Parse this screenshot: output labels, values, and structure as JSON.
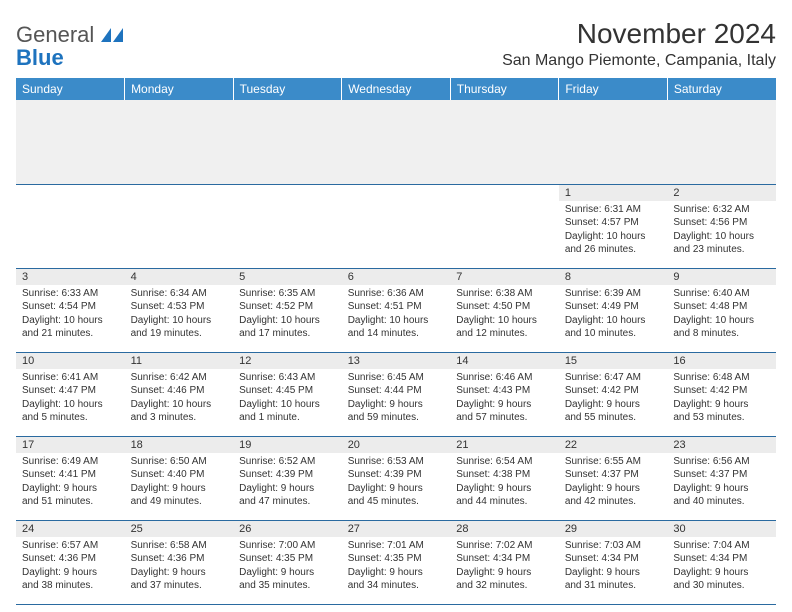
{
  "logo": {
    "word1": "General",
    "word2": "Blue"
  },
  "title": "November 2024",
  "location": "San Mango Piemonte, Campania, Italy",
  "colors": {
    "header_bg": "#3b8bc9",
    "header_text": "#ffffff",
    "rule": "#2a6aa0",
    "daybar": "#ececec",
    "logo_blue": "#1e73be",
    "text": "#333333"
  },
  "weekdays": [
    "Sunday",
    "Monday",
    "Tuesday",
    "Wednesday",
    "Thursday",
    "Friday",
    "Saturday"
  ],
  "weeks": [
    [
      {
        "n": "",
        "sr": "",
        "ss": "",
        "dl1": "",
        "dl2": ""
      },
      {
        "n": "",
        "sr": "",
        "ss": "",
        "dl1": "",
        "dl2": ""
      },
      {
        "n": "",
        "sr": "",
        "ss": "",
        "dl1": "",
        "dl2": ""
      },
      {
        "n": "",
        "sr": "",
        "ss": "",
        "dl1": "",
        "dl2": ""
      },
      {
        "n": "",
        "sr": "",
        "ss": "",
        "dl1": "",
        "dl2": ""
      },
      {
        "n": "1",
        "sr": "Sunrise: 6:31 AM",
        "ss": "Sunset: 4:57 PM",
        "dl1": "Daylight: 10 hours",
        "dl2": "and 26 minutes."
      },
      {
        "n": "2",
        "sr": "Sunrise: 6:32 AM",
        "ss": "Sunset: 4:56 PM",
        "dl1": "Daylight: 10 hours",
        "dl2": "and 23 minutes."
      }
    ],
    [
      {
        "n": "3",
        "sr": "Sunrise: 6:33 AM",
        "ss": "Sunset: 4:54 PM",
        "dl1": "Daylight: 10 hours",
        "dl2": "and 21 minutes."
      },
      {
        "n": "4",
        "sr": "Sunrise: 6:34 AM",
        "ss": "Sunset: 4:53 PM",
        "dl1": "Daylight: 10 hours",
        "dl2": "and 19 minutes."
      },
      {
        "n": "5",
        "sr": "Sunrise: 6:35 AM",
        "ss": "Sunset: 4:52 PM",
        "dl1": "Daylight: 10 hours",
        "dl2": "and 17 minutes."
      },
      {
        "n": "6",
        "sr": "Sunrise: 6:36 AM",
        "ss": "Sunset: 4:51 PM",
        "dl1": "Daylight: 10 hours",
        "dl2": "and 14 minutes."
      },
      {
        "n": "7",
        "sr": "Sunrise: 6:38 AM",
        "ss": "Sunset: 4:50 PM",
        "dl1": "Daylight: 10 hours",
        "dl2": "and 12 minutes."
      },
      {
        "n": "8",
        "sr": "Sunrise: 6:39 AM",
        "ss": "Sunset: 4:49 PM",
        "dl1": "Daylight: 10 hours",
        "dl2": "and 10 minutes."
      },
      {
        "n": "9",
        "sr": "Sunrise: 6:40 AM",
        "ss": "Sunset: 4:48 PM",
        "dl1": "Daylight: 10 hours",
        "dl2": "and 8 minutes."
      }
    ],
    [
      {
        "n": "10",
        "sr": "Sunrise: 6:41 AM",
        "ss": "Sunset: 4:47 PM",
        "dl1": "Daylight: 10 hours",
        "dl2": "and 5 minutes."
      },
      {
        "n": "11",
        "sr": "Sunrise: 6:42 AM",
        "ss": "Sunset: 4:46 PM",
        "dl1": "Daylight: 10 hours",
        "dl2": "and 3 minutes."
      },
      {
        "n": "12",
        "sr": "Sunrise: 6:43 AM",
        "ss": "Sunset: 4:45 PM",
        "dl1": "Daylight: 10 hours",
        "dl2": "and 1 minute."
      },
      {
        "n": "13",
        "sr": "Sunrise: 6:45 AM",
        "ss": "Sunset: 4:44 PM",
        "dl1": "Daylight: 9 hours",
        "dl2": "and 59 minutes."
      },
      {
        "n": "14",
        "sr": "Sunrise: 6:46 AM",
        "ss": "Sunset: 4:43 PM",
        "dl1": "Daylight: 9 hours",
        "dl2": "and 57 minutes."
      },
      {
        "n": "15",
        "sr": "Sunrise: 6:47 AM",
        "ss": "Sunset: 4:42 PM",
        "dl1": "Daylight: 9 hours",
        "dl2": "and 55 minutes."
      },
      {
        "n": "16",
        "sr": "Sunrise: 6:48 AM",
        "ss": "Sunset: 4:42 PM",
        "dl1": "Daylight: 9 hours",
        "dl2": "and 53 minutes."
      }
    ],
    [
      {
        "n": "17",
        "sr": "Sunrise: 6:49 AM",
        "ss": "Sunset: 4:41 PM",
        "dl1": "Daylight: 9 hours",
        "dl2": "and 51 minutes."
      },
      {
        "n": "18",
        "sr": "Sunrise: 6:50 AM",
        "ss": "Sunset: 4:40 PM",
        "dl1": "Daylight: 9 hours",
        "dl2": "and 49 minutes."
      },
      {
        "n": "19",
        "sr": "Sunrise: 6:52 AM",
        "ss": "Sunset: 4:39 PM",
        "dl1": "Daylight: 9 hours",
        "dl2": "and 47 minutes."
      },
      {
        "n": "20",
        "sr": "Sunrise: 6:53 AM",
        "ss": "Sunset: 4:39 PM",
        "dl1": "Daylight: 9 hours",
        "dl2": "and 45 minutes."
      },
      {
        "n": "21",
        "sr": "Sunrise: 6:54 AM",
        "ss": "Sunset: 4:38 PM",
        "dl1": "Daylight: 9 hours",
        "dl2": "and 44 minutes."
      },
      {
        "n": "22",
        "sr": "Sunrise: 6:55 AM",
        "ss": "Sunset: 4:37 PM",
        "dl1": "Daylight: 9 hours",
        "dl2": "and 42 minutes."
      },
      {
        "n": "23",
        "sr": "Sunrise: 6:56 AM",
        "ss": "Sunset: 4:37 PM",
        "dl1": "Daylight: 9 hours",
        "dl2": "and 40 minutes."
      }
    ],
    [
      {
        "n": "24",
        "sr": "Sunrise: 6:57 AM",
        "ss": "Sunset: 4:36 PM",
        "dl1": "Daylight: 9 hours",
        "dl2": "and 38 minutes."
      },
      {
        "n": "25",
        "sr": "Sunrise: 6:58 AM",
        "ss": "Sunset: 4:36 PM",
        "dl1": "Daylight: 9 hours",
        "dl2": "and 37 minutes."
      },
      {
        "n": "26",
        "sr": "Sunrise: 7:00 AM",
        "ss": "Sunset: 4:35 PM",
        "dl1": "Daylight: 9 hours",
        "dl2": "and 35 minutes."
      },
      {
        "n": "27",
        "sr": "Sunrise: 7:01 AM",
        "ss": "Sunset: 4:35 PM",
        "dl1": "Daylight: 9 hours",
        "dl2": "and 34 minutes."
      },
      {
        "n": "28",
        "sr": "Sunrise: 7:02 AM",
        "ss": "Sunset: 4:34 PM",
        "dl1": "Daylight: 9 hours",
        "dl2": "and 32 minutes."
      },
      {
        "n": "29",
        "sr": "Sunrise: 7:03 AM",
        "ss": "Sunset: 4:34 PM",
        "dl1": "Daylight: 9 hours",
        "dl2": "and 31 minutes."
      },
      {
        "n": "30",
        "sr": "Sunrise: 7:04 AM",
        "ss": "Sunset: 4:34 PM",
        "dl1": "Daylight: 9 hours",
        "dl2": "and 30 minutes."
      }
    ]
  ]
}
